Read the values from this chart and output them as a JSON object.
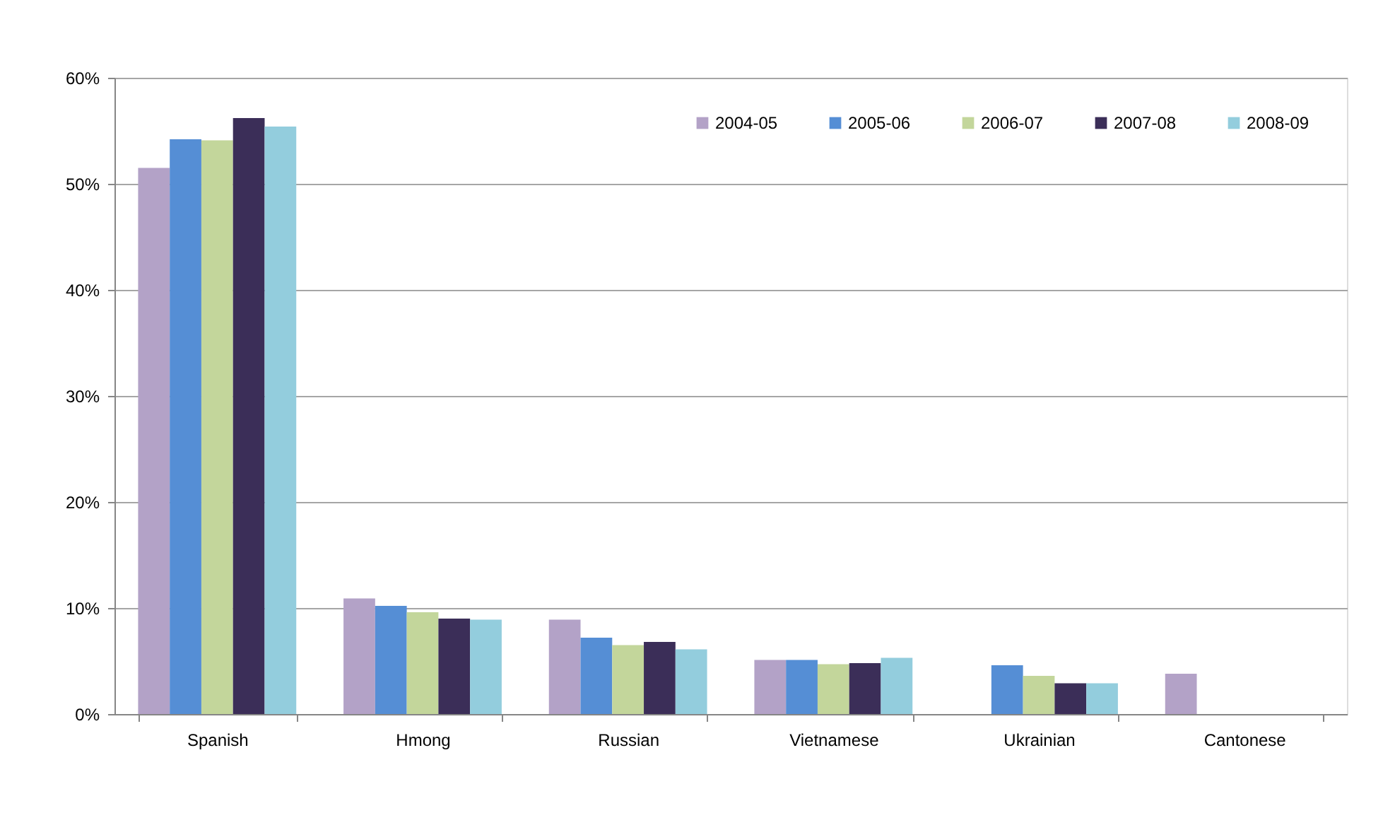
{
  "chart_data": {
    "type": "bar",
    "categories": [
      "Spanish",
      "Hmong",
      "Russian",
      "Vietnamese",
      "Ukrainian",
      "Cantonese"
    ],
    "series": [
      {
        "name": "2004-05",
        "color": "#b3a2c7",
        "values": [
          51.5,
          10.9,
          8.9,
          5.1,
          null,
          3.8
        ]
      },
      {
        "name": "2005-06",
        "color": "#558ed5",
        "values": [
          54.2,
          10.2,
          7.2,
          5.1,
          4.6,
          null
        ]
      },
      {
        "name": "2006-07",
        "color": "#c3d69b",
        "values": [
          54.1,
          9.6,
          6.5,
          4.7,
          3.6,
          null
        ]
      },
      {
        "name": "2007-08",
        "color": "#3b2e58",
        "values": [
          56.2,
          9.0,
          6.8,
          4.8,
          2.9,
          null
        ]
      },
      {
        "name": "2008-09",
        "color": "#93cddd",
        "values": [
          55.4,
          8.9,
          6.1,
          5.3,
          2.9,
          null
        ]
      }
    ],
    "ylim": [
      0,
      60
    ],
    "yticks": [
      {
        "value": 0,
        "label": "0%"
      },
      {
        "value": 10,
        "label": "10%"
      },
      {
        "value": 20,
        "label": "20%"
      },
      {
        "value": 30,
        "label": "30%"
      },
      {
        "value": 40,
        "label": "40%"
      },
      {
        "value": 50,
        "label": "50%"
      },
      {
        "value": 60,
        "label": "60%"
      }
    ],
    "grid": "y",
    "legend": "top right"
  }
}
